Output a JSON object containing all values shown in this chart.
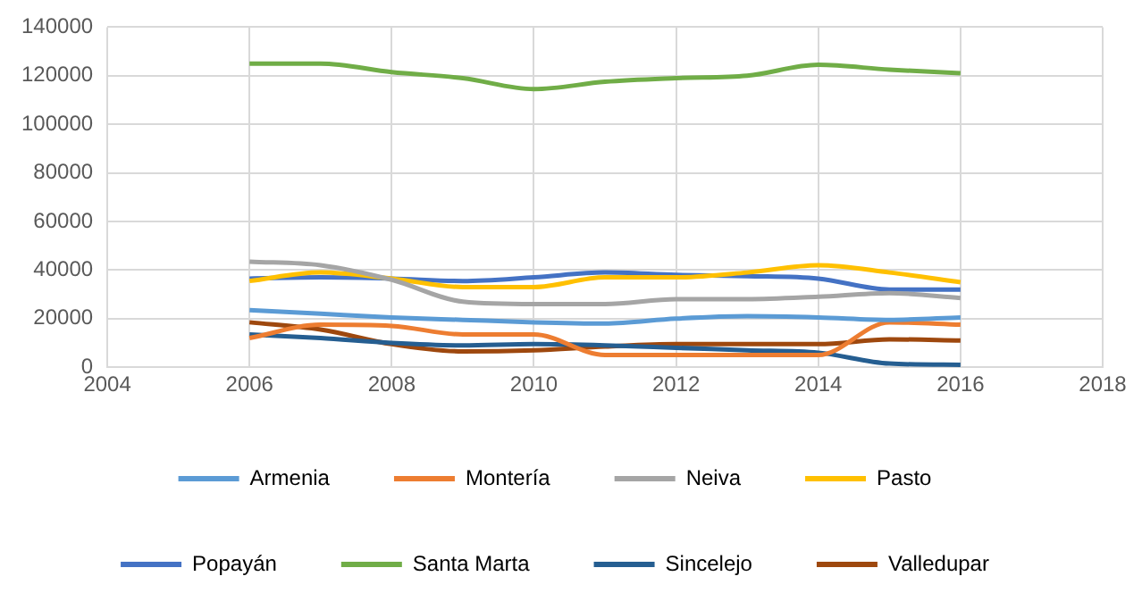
{
  "chart_data": {
    "type": "line",
    "x": [
      2006,
      2007,
      2008,
      2009,
      2010,
      2011,
      2012,
      2013,
      2014,
      2015,
      2016
    ],
    "series": [
      {
        "name": "Armenia",
        "color": "#5b9bd5",
        "values": [
          23500,
          22000,
          20500,
          19500,
          18500,
          18000,
          20000,
          21000,
          20500,
          19500,
          20500
        ]
      },
      {
        "name": "Montería",
        "color": "#ed7d31",
        "values": [
          12000,
          17500,
          17000,
          13500,
          13500,
          5000,
          5000,
          5000,
          5000,
          18500,
          17500
        ]
      },
      {
        "name": "Neiva",
        "color": "#a5a5a5",
        "values": [
          43500,
          42000,
          36000,
          27000,
          26000,
          26000,
          28000,
          28000,
          29000,
          30500,
          28500
        ]
      },
      {
        "name": "Pasto",
        "color": "#ffc000",
        "values": [
          35500,
          39000,
          36500,
          33000,
          33000,
          37000,
          37000,
          39000,
          42000,
          39000,
          35000
        ]
      },
      {
        "name": "Popayán",
        "color": "#4472c4",
        "values": [
          36500,
          37000,
          36500,
          35500,
          37000,
          39000,
          38000,
          37500,
          36500,
          32000,
          32000
        ]
      },
      {
        "name": "Santa Marta",
        "color": "#70ad47",
        "values": [
          125000,
          125000,
          121500,
          119000,
          114500,
          117500,
          119000,
          120000,
          124500,
          122500,
          121000
        ]
      },
      {
        "name": "Sincelejo",
        "color": "#255e91",
        "values": [
          13500,
          12000,
          10000,
          9000,
          9500,
          9000,
          8000,
          7000,
          6000,
          1500,
          1000
        ]
      },
      {
        "name": "Valledupar",
        "color": "#9e480e",
        "values": [
          18500,
          15500,
          9500,
          6500,
          7000,
          8500,
          9500,
          9500,
          9500,
          11500,
          11000
        ]
      }
    ],
    "xlim": [
      2004,
      2018
    ],
    "xticks": [
      2004,
      2006,
      2008,
      2010,
      2012,
      2014,
      2016,
      2018
    ],
    "ylim": [
      0,
      140000
    ],
    "yticks": [
      0,
      20000,
      40000,
      60000,
      80000,
      100000,
      120000,
      140000
    ],
    "grid": true,
    "legend": "bottom",
    "marker": "none",
    "line_style": "solid"
  }
}
